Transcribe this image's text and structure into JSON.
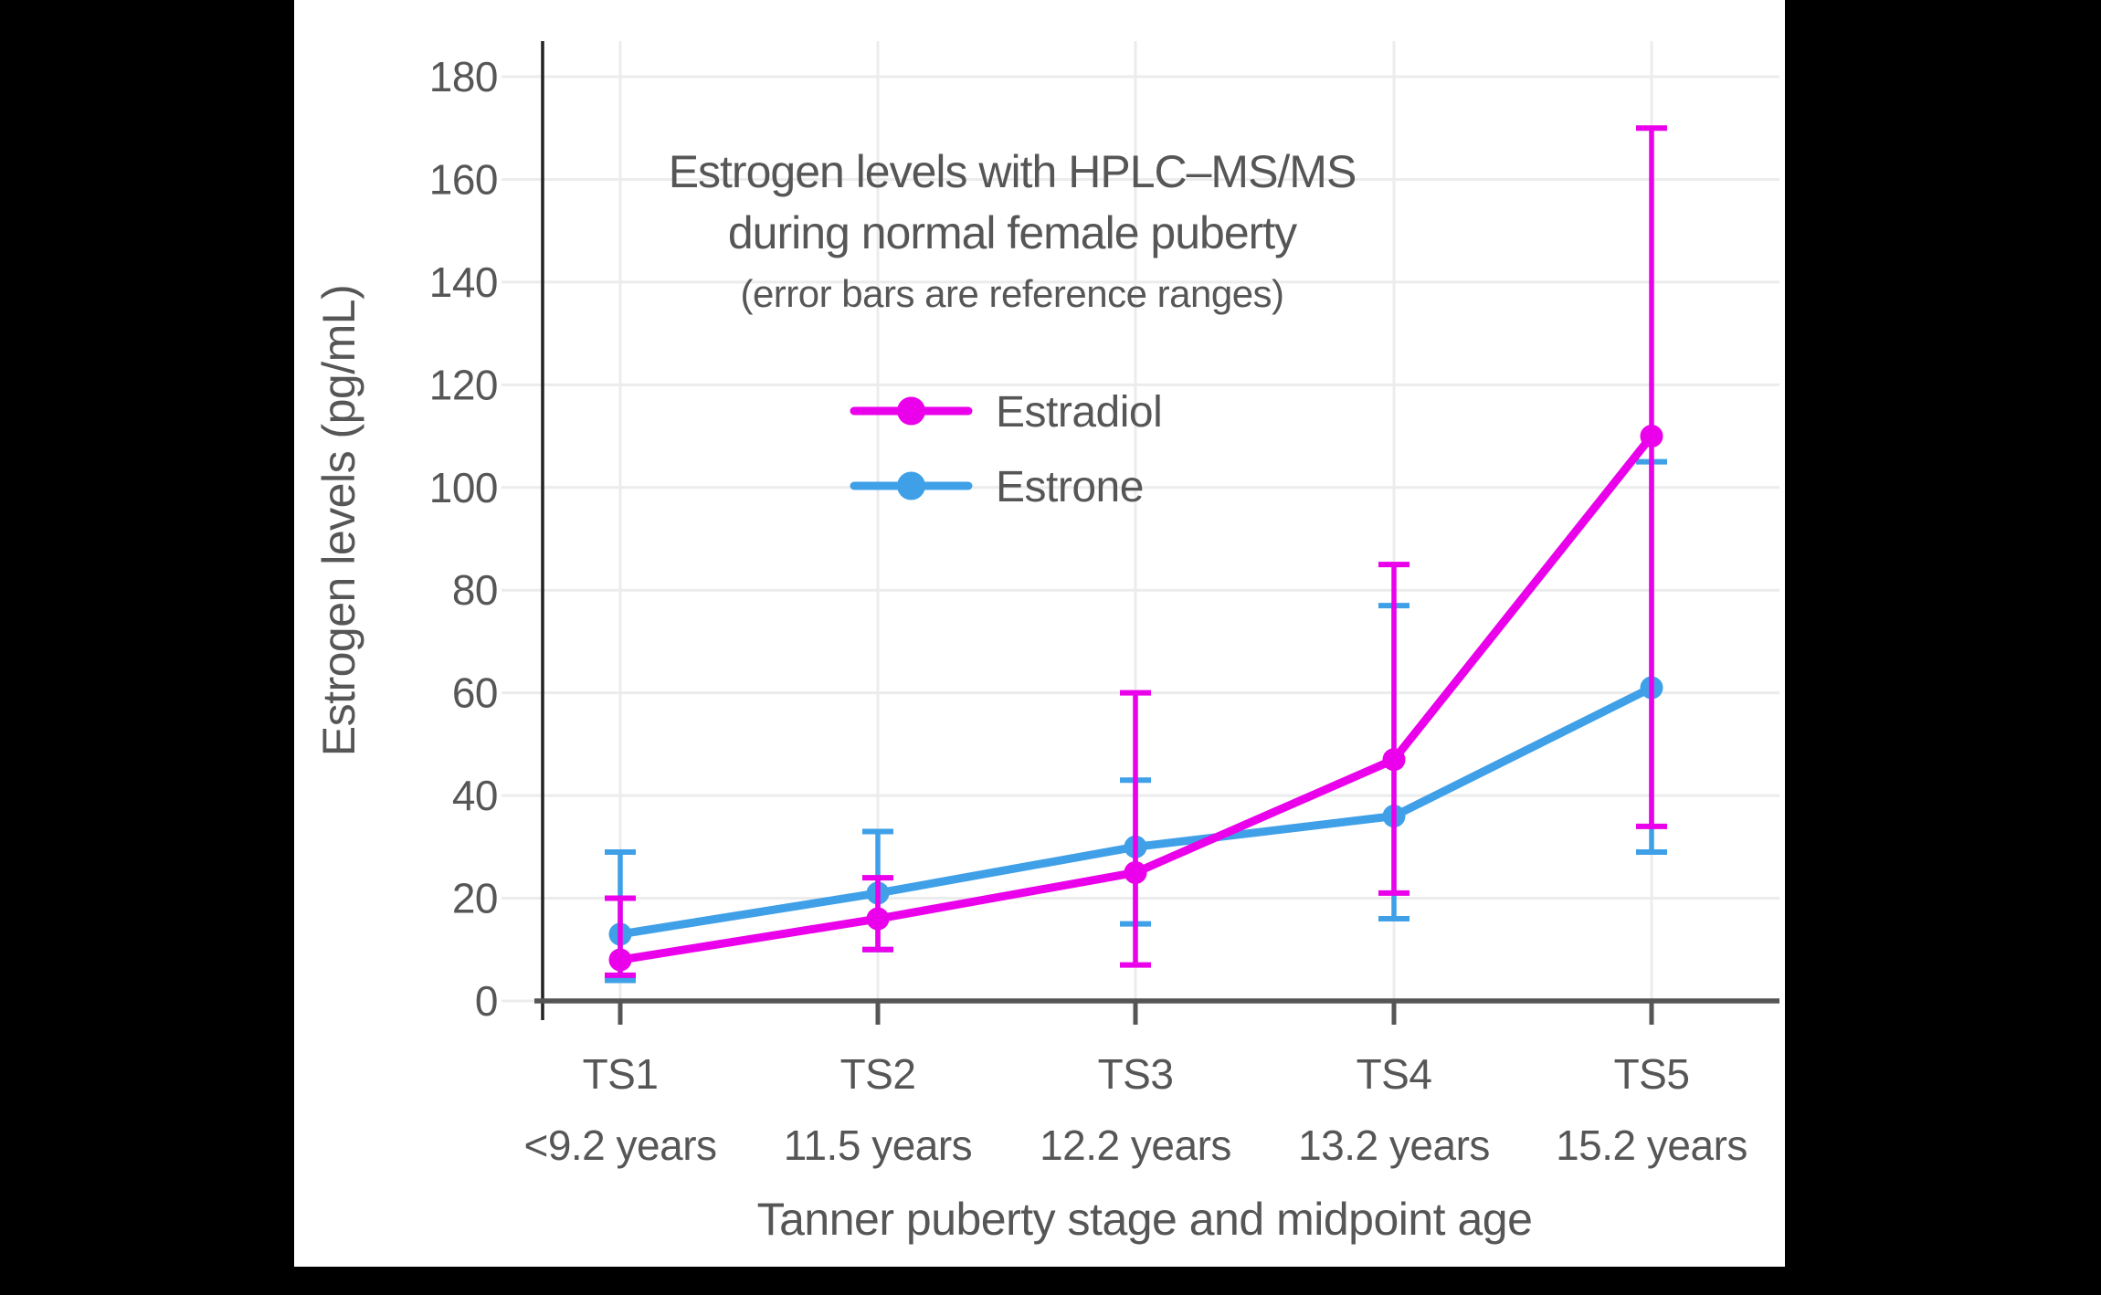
{
  "frame": {
    "background_color": "#000000",
    "panel_color": "#ffffff"
  },
  "colors": {
    "text": "#565656",
    "grid": "#ececec",
    "x_axis": "#555555",
    "y_axis": "#222222",
    "estradiol": "#ea00ea",
    "estrone": "#3fa0e8"
  },
  "chart_data": {
    "type": "line",
    "title_lines": [
      "Estrogen levels with HPLC–MS/MS",
      "during normal female puberty"
    ],
    "subtitle": "(error bars are reference ranges)",
    "xlabel": "Tanner puberty stage and midpoint age",
    "ylabel": "Estrogen levels (pg/mL)",
    "categories": [
      "TS1",
      "TS2",
      "TS3",
      "TS4",
      "TS5"
    ],
    "category_ages": [
      "<9.2 years",
      "11.5 years",
      "12.2 years",
      "13.2 years",
      "15.2 years"
    ],
    "ylim": [
      0,
      180
    ],
    "yticks": [
      0,
      20,
      40,
      60,
      80,
      100,
      120,
      140,
      160,
      180
    ],
    "grid": true,
    "legend_position": "upper-center-inside",
    "series": [
      {
        "name": "Estradiol",
        "color": "#ea00ea",
        "values": [
          8,
          16,
          25,
          47,
          110
        ],
        "err_low": [
          5,
          10,
          7,
          21,
          34
        ],
        "err_high": [
          20,
          24,
          60,
          85,
          170
        ]
      },
      {
        "name": "Estrone",
        "color": "#3fa0e8",
        "values": [
          13,
          21,
          30,
          36,
          61
        ],
        "err_low": [
          4,
          10,
          15,
          16,
          29
        ],
        "err_high": [
          29,
          33,
          43,
          77,
          105
        ]
      }
    ]
  }
}
